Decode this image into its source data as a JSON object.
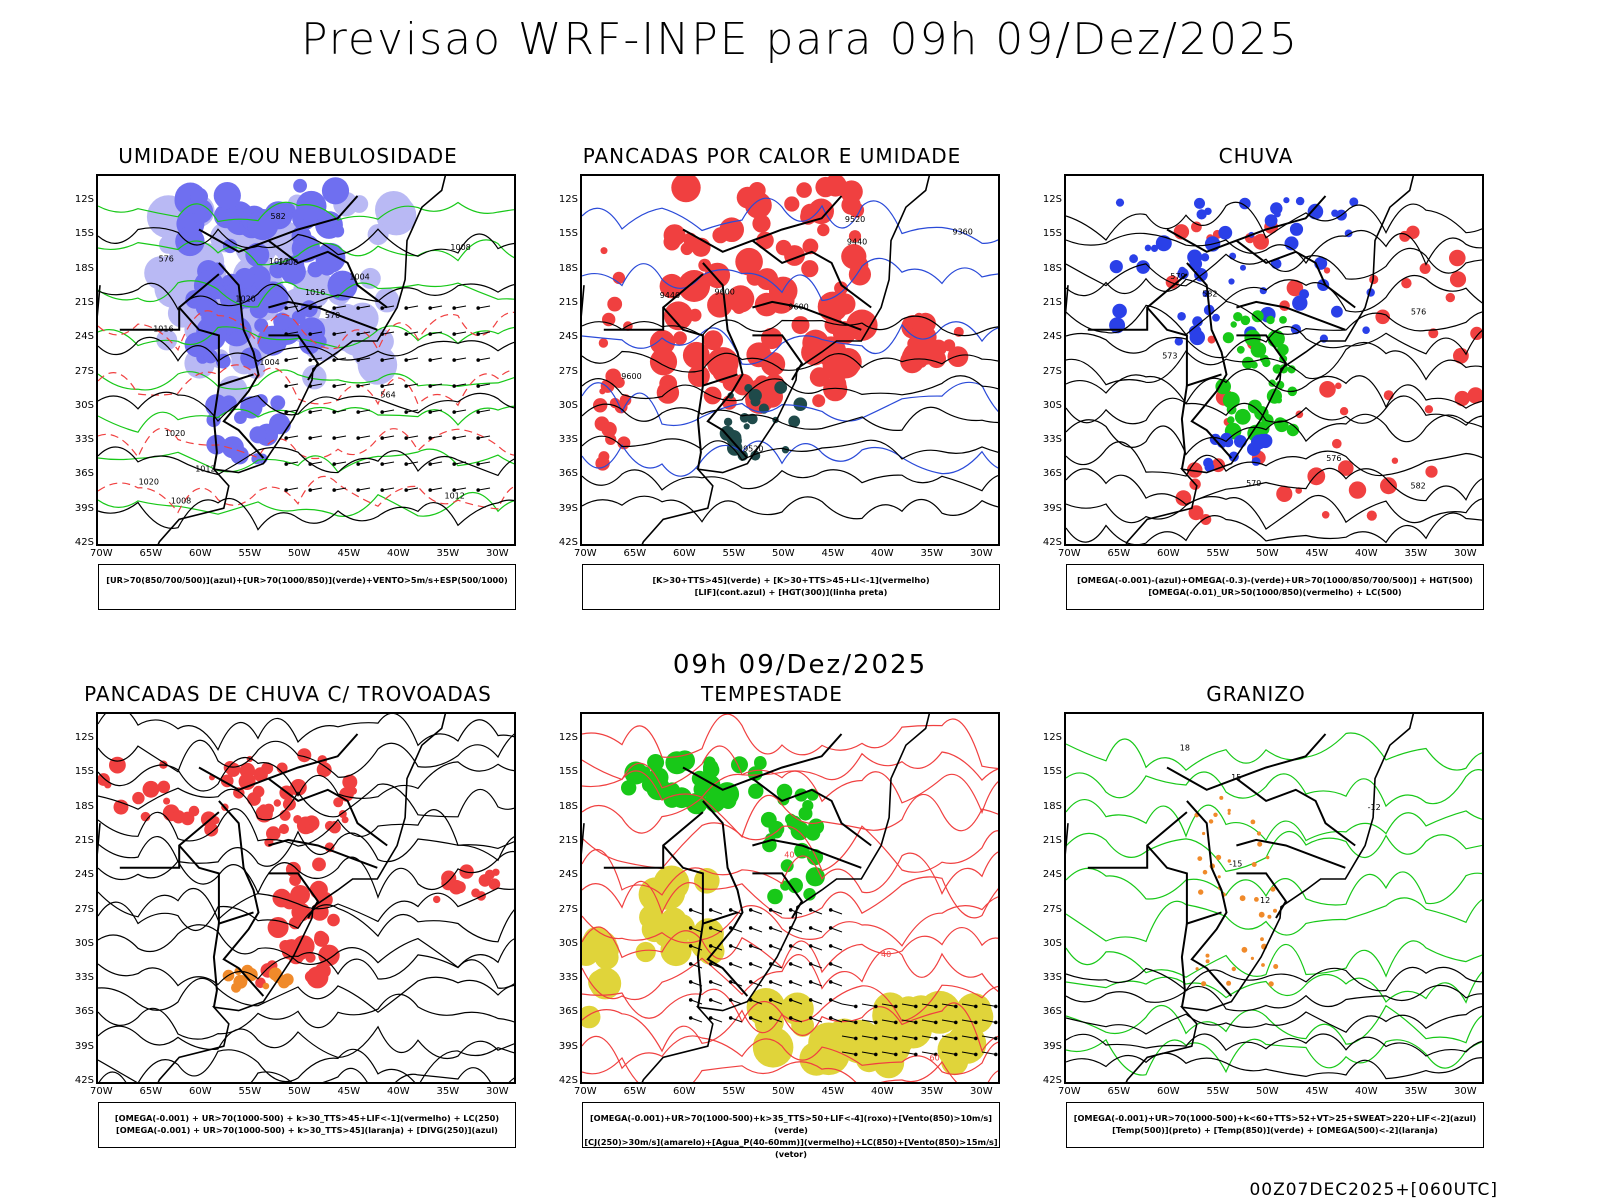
{
  "header": {
    "title": "Previsao WRF-INPE  para 09h 09/Dez/2025"
  },
  "mid_title": "09h 09/Dez/2025",
  "footer": "00Z07DEC2025+[060UTC]",
  "axes": {
    "lat_labels": [
      "12S",
      "15S",
      "18S",
      "21S",
      "24S",
      "27S",
      "30S",
      "33S",
      "36S",
      "39S",
      "42S"
    ],
    "lon_labels": [
      "70W",
      "65W",
      "60W",
      "55W",
      "50W",
      "45W",
      "40W",
      "35W",
      "30W"
    ]
  },
  "panels": [
    {
      "title": "UMIDADE E/OU NEBULOSIDADE",
      "legend": [
        "[UR>70(850/700/500)](azul)+[UR>70(1000/850)](verde)+VENTO>5m/s+ESP(500/1000)"
      ],
      "contour_labels": [
        "1012",
        "1016",
        "1008",
        "1004",
        "1004",
        "1008",
        "1012",
        "1016",
        "1020",
        "1020",
        "1020",
        "1012",
        "1008",
        "570",
        "564",
        "576",
        "582"
      ]
    },
    {
      "title": "PANCADAS POR CALOR E UMIDADE",
      "legend": [
        "[K>30+TTS>45](verde) + [K>30+TTS>45+LI<-1](vermelho)",
        "[LIF](cont.azul) + [HGT(300)](linha preta)"
      ],
      "contour_labels": [
        "9600",
        "9600",
        "9520",
        "9440",
        "9520",
        "9360",
        "9440",
        "9600"
      ]
    },
    {
      "title": "CHUVA",
      "legend": [
        "[OMEGA(-0.001)-(azul)+OMEGA(-0.3)-(verde)+UR>70(1000/850/700/500)] + HGT(500)",
        "[OMEGA(-0.01)_UR>50(1000/850)(vermelho) + LC(500)"
      ],
      "contour_labels": [
        "576",
        "573",
        "576",
        "579",
        "582",
        "579",
        "582"
      ]
    },
    {
      "title": "PANCADAS DE CHUVA C/ TROVOADAS",
      "legend": [
        "[OMEGA(-0.001) + UR>70(1000-500) + k>30_TTS>45+LIF<-1](vermelho) + LC(250)",
        "[OMEGA(-0.001) + UR>70(1000-500) + k>30_TTS>45](laranja) + [DIVG(250)](azul)"
      ],
      "contour_labels": []
    },
    {
      "title": "TEMPESTADE",
      "legend": [
        "[OMEGA(-0.001)+UR>70(1000-500)+k>35_TTS>50+LIF<-4](roxo)+[Vento(850)>10m/s](verde)",
        "[CJ(250)>30m/s](amarelo)+[Agua_P(40-60mm)](vermelho)+LC(850)+[Vento(850)>15m/s](vetor)"
      ],
      "contour_labels": [
        "40",
        "60",
        "40"
      ]
    },
    {
      "title": "GRANIZO",
      "legend": [
        "[OMEGA(-0.001)+UR>70(1000-500)+k<60+TTS>52+VT>25+SWEAT>220+LIF<-2](azul)",
        "[Temp(500)](preto) + [Temp(850)](verde) + [OMEGA(500)<-2](laranja)"
      ],
      "contour_labels": [
        "-12",
        "12",
        "15",
        "18",
        "-15"
      ]
    }
  ],
  "colors": {
    "blue_rh": "#6f6ff0",
    "light_blue": "#b9b9f4",
    "green": "#18c818",
    "red": "#f04040",
    "dark_teal": "#1f4a4a",
    "orange": "#f08a2a",
    "yellow": "#e0d43a",
    "contour": "#000000"
  }
}
